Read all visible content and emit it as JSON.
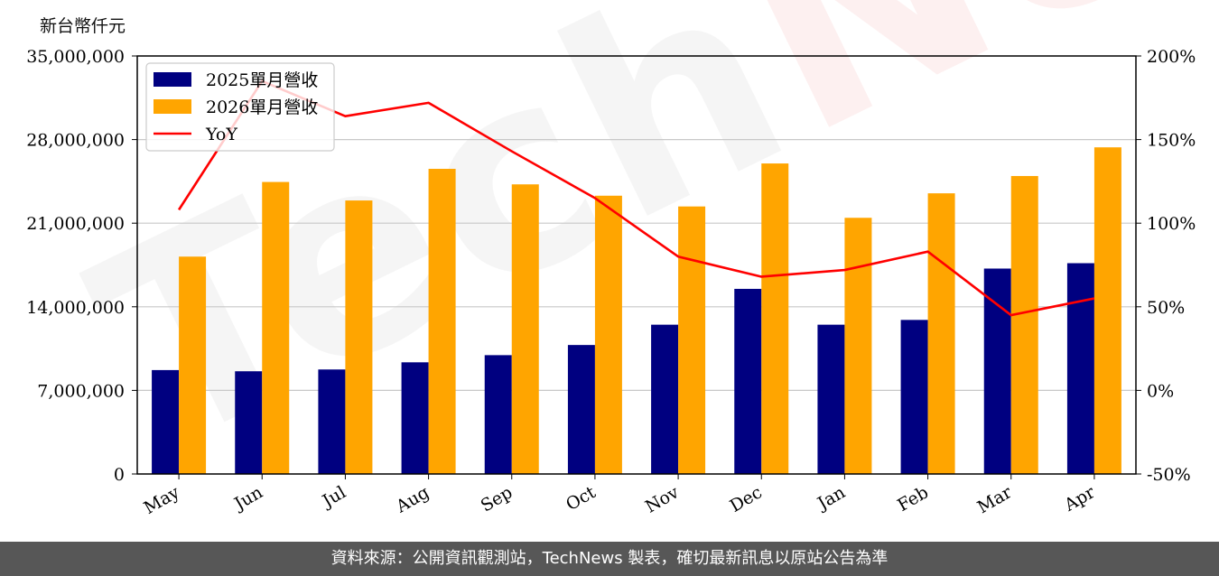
{
  "unit_label": "新台幣仟元",
  "footer_text": "資料來源：公開資訊觀測站，TechNews 製表，確切最新訊息以原站公告為準",
  "watermark": {
    "tech": "Tech",
    "news": "News"
  },
  "colors": {
    "bar2025": "#000080",
    "bar2026": "#FFA500",
    "yoy": "#FF0000"
  },
  "chart_data": {
    "type": "bar",
    "categories": [
      "May",
      "Jun",
      "Jul",
      "Aug",
      "Sep",
      "Oct",
      "Nov",
      "Dec",
      "Jan",
      "Feb",
      "Mar",
      "Apr"
    ],
    "series": [
      {
        "name": "2025單月營收",
        "values": [
          8700000,
          8600000,
          8750000,
          9350000,
          9950000,
          10800000,
          12500000,
          15500000,
          12500000,
          12900000,
          17200000,
          17650000
        ]
      },
      {
        "name": "2026單月營收",
        "values": [
          18200000,
          24450000,
          22900000,
          25550000,
          24250000,
          23300000,
          22400000,
          26000000,
          21450000,
          23500000,
          24950000,
          27350000
        ]
      },
      {
        "name": "YoY",
        "type": "line",
        "axis": "right",
        "values": [
          108,
          185,
          164,
          172,
          143,
          115,
          80,
          68,
          72,
          83,
          45,
          55
        ]
      }
    ],
    "y_left": {
      "lim": [
        0,
        35000000
      ],
      "ticks": [
        "0",
        "7,000,000",
        "14,000,000",
        "21,000,000",
        "28,000,000",
        "35,000,000"
      ]
    },
    "y_right": {
      "lim": [
        -50,
        200
      ],
      "ticks": [
        "-50%",
        "0%",
        "50%",
        "100%",
        "150%",
        "200%"
      ]
    },
    "legend": "top-left",
    "grid": "horizontal"
  }
}
